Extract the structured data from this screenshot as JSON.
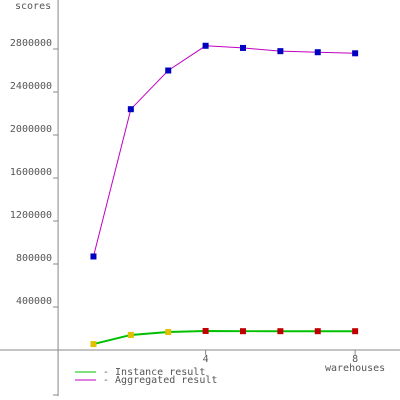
{
  "chart_data": {
    "type": "line",
    "y_label": "scores",
    "x_label": "warehouses",
    "x": [
      1,
      2,
      3,
      4,
      5,
      6,
      7,
      8
    ],
    "series": [
      {
        "name": "- Instance result",
        "color": "#00c000",
        "values": [
          55000,
          140000,
          167000,
          177000,
          175000,
          175000,
          175000,
          175000
        ],
        "marker_colors": [
          "#e0c000",
          "#e0c000",
          "#e0c000",
          "#c00000",
          "#c00000",
          "#c00000",
          "#c00000",
          "#c00000"
        ]
      },
      {
        "name": "- Aggregated result",
        "color": "#c000c0",
        "values": [
          870000,
          2240000,
          2600000,
          2830000,
          2810000,
          2780000,
          2770000,
          2760000
        ],
        "marker_colors": [
          "#0000c0",
          "#0000c0",
          "#0000c0",
          "#0000c0",
          "#0000c0",
          "#0000c0",
          "#0000c0",
          "#0000c0"
        ]
      }
    ],
    "xlim": [
      -1.5,
      9.2
    ],
    "ylim": [
      -400000,
      3200000
    ],
    "xticks": [
      4,
      8
    ],
    "yticks": [
      400000,
      800000,
      1200000,
      1600000,
      2000000,
      2400000,
      2800000
    ]
  }
}
